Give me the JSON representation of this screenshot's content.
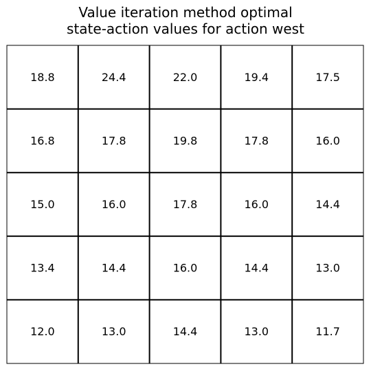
{
  "chart_data": {
    "type": "table",
    "title_lines": [
      "Value iteration method optimal",
      "state-action values for action west"
    ],
    "rows": 5,
    "cols": 5,
    "values": [
      [
        "18.8",
        "24.4",
        "22.0",
        "19.4",
        "17.5"
      ],
      [
        "16.8",
        "17.8",
        "19.8",
        "17.8",
        "16.0"
      ],
      [
        "15.0",
        "16.0",
        "17.8",
        "16.0",
        "14.4"
      ],
      [
        "13.4",
        "14.4",
        "16.0",
        "14.4",
        "13.0"
      ],
      [
        "12.0",
        "13.0",
        "14.4",
        "13.0",
        "11.7"
      ]
    ],
    "grid": true,
    "colors": {
      "background": "#ffffff",
      "grid_line": "#000000",
      "text": "#000000"
    }
  }
}
